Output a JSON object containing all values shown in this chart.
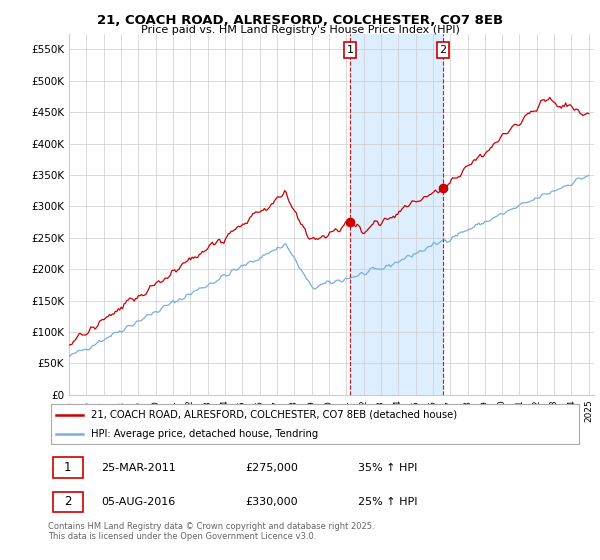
{
  "title_line1": "21, COACH ROAD, ALRESFORD, COLCHESTER, CO7 8EB",
  "title_line2": "Price paid vs. HM Land Registry's House Price Index (HPI)",
  "ylim": [
    0,
    575000
  ],
  "yticks": [
    0,
    50000,
    100000,
    150000,
    200000,
    250000,
    300000,
    350000,
    400000,
    450000,
    500000,
    550000
  ],
  "ytick_labels": [
    "£0",
    "£50K",
    "£100K",
    "£150K",
    "£200K",
    "£250K",
    "£300K",
    "£350K",
    "£400K",
    "£450K",
    "£500K",
    "£550K"
  ],
  "year_start": 1995,
  "year_end": 2025,
  "sale1_year": 2011.23,
  "sale1_price": 275000,
  "sale1_label": "1",
  "sale2_year": 2016.59,
  "sale2_price": 330000,
  "sale2_label": "2",
  "red_color": "#cc0000",
  "blue_color": "#7aade0",
  "vline_color": "#cc0000",
  "grid_color": "#cccccc",
  "background_color": "#ffffff",
  "span_color": "#ddeeff",
  "legend_label_red": "21, COACH ROAD, ALRESFORD, COLCHESTER, CO7 8EB (detached house)",
  "legend_label_blue": "HPI: Average price, detached house, Tendring",
  "footnote": "Contains HM Land Registry data © Crown copyright and database right 2025.\nThis data is licensed under the Open Government Licence v3.0.",
  "table_row1": [
    "1",
    "25-MAR-2011",
    "£275,000",
    "35% ↑ HPI"
  ],
  "table_row2": [
    "2",
    "05-AUG-2016",
    "£330,000",
    "25% ↑ HPI"
  ]
}
